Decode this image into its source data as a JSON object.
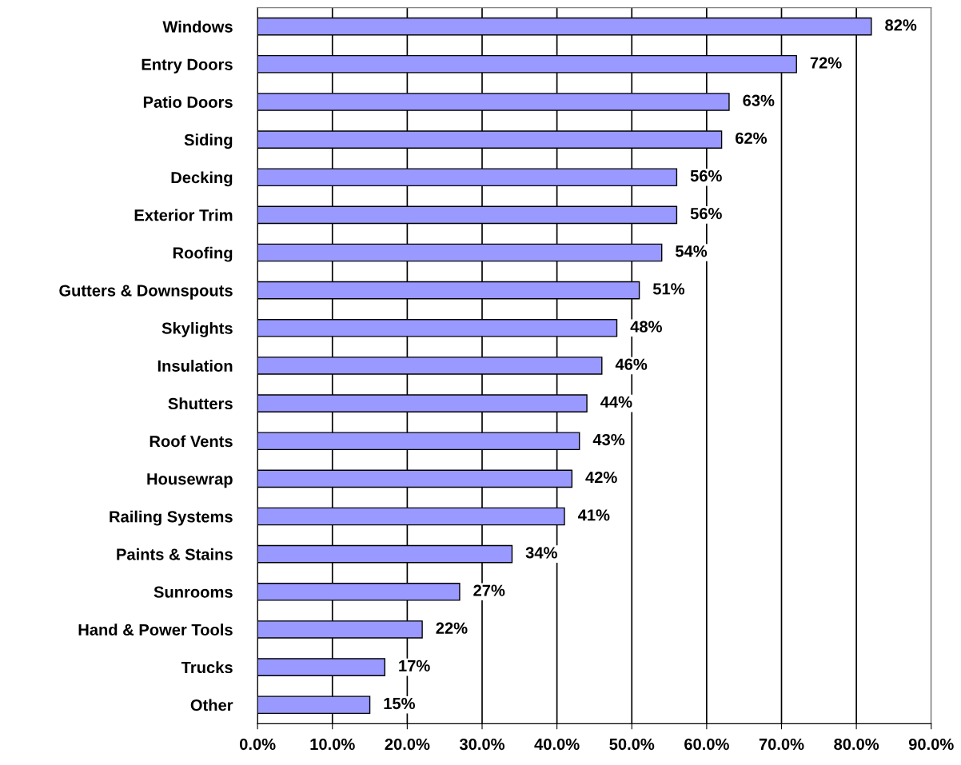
{
  "chart_data": {
    "type": "bar",
    "orientation": "horizontal",
    "categories": [
      "Windows",
      "Entry Doors",
      "Patio Doors",
      "Siding",
      "Decking",
      "Exterior Trim",
      "Roofing",
      "Gutters & Downspouts",
      "Skylights",
      "Insulation",
      "Shutters",
      "Roof Vents",
      "Housewrap",
      "Railing Systems",
      "Paints & Stains",
      "Sunrooms",
      "Hand & Power Tools",
      "Trucks",
      "Other"
    ],
    "values": [
      82,
      72,
      63,
      62,
      56,
      56,
      54,
      51,
      48,
      46,
      44,
      43,
      42,
      41,
      34,
      27,
      22,
      17,
      15
    ],
    "value_labels": [
      "82%",
      "72%",
      "63%",
      "62%",
      "56%",
      "56%",
      "54%",
      "51%",
      "48%",
      "46%",
      "44%",
      "43%",
      "42%",
      "41%",
      "34%",
      "27%",
      "22%",
      "17%",
      "15%"
    ],
    "color": "#9999ff",
    "xlim": [
      0,
      90
    ],
    "xticks": [
      {
        "value": 0,
        "label": "0.0%"
      },
      {
        "value": 10,
        "label": "10.0%"
      },
      {
        "value": 20,
        "label": "20.0%"
      },
      {
        "value": 30,
        "label": "30.0%"
      },
      {
        "value": 40,
        "label": "40.0%"
      },
      {
        "value": 50,
        "label": "50.0%"
      },
      {
        "value": 60,
        "label": "60.0%"
      },
      {
        "value": 70,
        "label": "70.0%"
      },
      {
        "value": 80,
        "label": "80.0%"
      },
      {
        "value": 90,
        "label": "90.0%"
      }
    ],
    "grid": "x"
  }
}
